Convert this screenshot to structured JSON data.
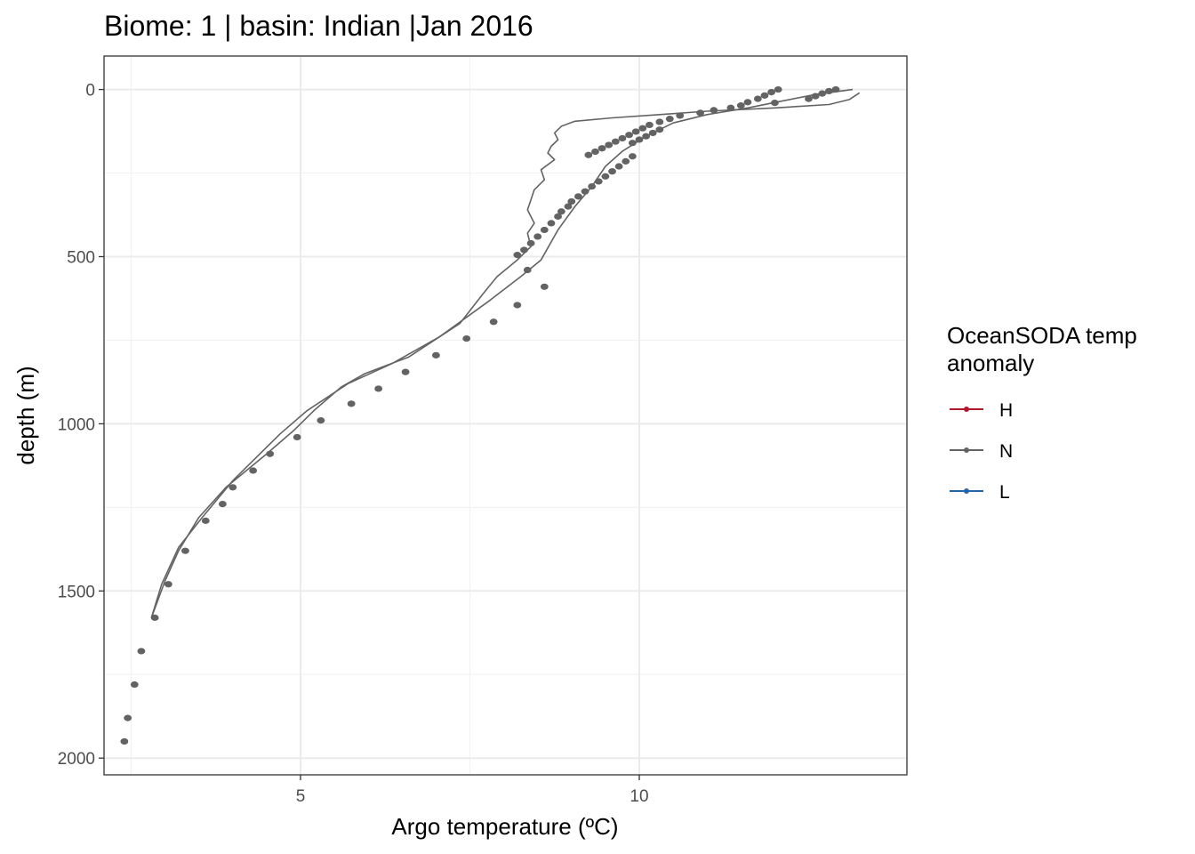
{
  "chart_data": {
    "type": "line",
    "title": "Biome: 1 | basin: Indian  |Jan 2016",
    "xlabel": "Argo temperature (ºC)",
    "ylabel": "depth (m)",
    "xlim": [
      2.1,
      13.95
    ],
    "ylim": [
      -100,
      2050
    ],
    "y_reversed": true,
    "grid": true,
    "x_ticks": [
      {
        "value": 5,
        "label": "5"
      },
      {
        "value": 10,
        "label": "10"
      }
    ],
    "y_ticks": [
      {
        "value": 0,
        "label": "0"
      },
      {
        "value": 500,
        "label": "500"
      },
      {
        "value": 1000,
        "label": "1000"
      },
      {
        "value": 1500,
        "label": "1500"
      },
      {
        "value": 2000,
        "label": "2000"
      }
    ],
    "legend": {
      "title_lines": [
        "OceanSODA temp",
        "anomaly"
      ],
      "placement": "right",
      "entries": [
        {
          "name": "H",
          "color": "#b2182b"
        },
        {
          "name": "N",
          "color": "#636363"
        },
        {
          "name": "L",
          "color": "#2166ac"
        }
      ]
    },
    "series_color": "#636363",
    "lines": [
      {
        "name": "N",
        "points": [
          [
            13.25,
            10
          ],
          [
            13.1,
            30
          ],
          [
            12.8,
            45
          ],
          [
            12.0,
            55
          ],
          [
            11.0,
            65
          ],
          [
            10.3,
            75
          ],
          [
            9.6,
            85
          ],
          [
            9.05,
            95
          ],
          [
            8.85,
            110
          ],
          [
            8.75,
            130
          ],
          [
            8.8,
            150
          ],
          [
            8.7,
            170
          ],
          [
            8.65,
            190
          ],
          [
            8.75,
            210
          ],
          [
            8.55,
            240
          ],
          [
            8.6,
            270
          ],
          [
            8.45,
            300
          ],
          [
            8.4,
            330
          ],
          [
            8.35,
            360
          ],
          [
            8.45,
            400
          ],
          [
            8.35,
            430
          ],
          [
            8.4,
            470
          ],
          [
            8.2,
            510
          ],
          [
            7.9,
            560
          ],
          [
            7.7,
            610
          ],
          [
            7.35,
            700
          ],
          [
            6.6,
            800
          ],
          [
            5.95,
            850
          ],
          [
            5.6,
            890
          ],
          [
            5.2,
            960
          ],
          [
            4.9,
            1020
          ],
          [
            4.5,
            1090
          ],
          [
            3.9,
            1190
          ],
          [
            3.5,
            1280
          ],
          [
            3.2,
            1380
          ],
          [
            3.0,
            1470
          ],
          [
            2.8,
            1580
          ]
        ]
      },
      {
        "name": "N",
        "points": [
          [
            13.15,
            0
          ],
          [
            12.6,
            15
          ],
          [
            12.1,
            35
          ],
          [
            11.6,
            55
          ],
          [
            11.0,
            75
          ],
          [
            10.5,
            100
          ],
          [
            10.1,
            140
          ],
          [
            9.75,
            185
          ],
          [
            9.5,
            230
          ],
          [
            9.3,
            290
          ],
          [
            9.05,
            350
          ],
          [
            8.8,
            420
          ],
          [
            8.55,
            510
          ],
          [
            8.25,
            560
          ],
          [
            7.8,
            630
          ],
          [
            7.05,
            740
          ],
          [
            6.35,
            820
          ],
          [
            5.7,
            880
          ],
          [
            5.1,
            960
          ],
          [
            4.7,
            1030
          ],
          [
            4.4,
            1090
          ],
          [
            4.0,
            1170
          ],
          [
            3.55,
            1280
          ],
          [
            3.2,
            1370
          ],
          [
            2.95,
            1480
          ],
          [
            2.8,
            1580
          ]
        ]
      }
    ],
    "points": [
      [
        12.9,
        0
      ],
      [
        12.8,
        5
      ],
      [
        12.7,
        12
      ],
      [
        12.6,
        20
      ],
      [
        12.5,
        28
      ],
      [
        12.05,
        0
      ],
      [
        11.95,
        8
      ],
      [
        11.85,
        18
      ],
      [
        11.75,
        28
      ],
      [
        11.6,
        38
      ],
      [
        12.0,
        40
      ],
      [
        11.5,
        48
      ],
      [
        11.35,
        55
      ],
      [
        11.1,
        62
      ],
      [
        10.9,
        70
      ],
      [
        10.6,
        78
      ],
      [
        10.45,
        88
      ],
      [
        10.3,
        97
      ],
      [
        10.15,
        106
      ],
      [
        10.05,
        116
      ],
      [
        9.95,
        126
      ],
      [
        9.85,
        136
      ],
      [
        9.75,
        146
      ],
      [
        9.65,
        156
      ],
      [
        9.55,
        166
      ],
      [
        9.45,
        176
      ],
      [
        9.35,
        186
      ],
      [
        9.25,
        196
      ],
      [
        10.3,
        120
      ],
      [
        10.2,
        130
      ],
      [
        10.1,
        140
      ],
      [
        10.0,
        150
      ],
      [
        9.9,
        160
      ],
      [
        9.9,
        200
      ],
      [
        9.8,
        215
      ],
      [
        9.7,
        230
      ],
      [
        9.6,
        245
      ],
      [
        9.5,
        260
      ],
      [
        9.4,
        275
      ],
      [
        9.3,
        290
      ],
      [
        9.2,
        305
      ],
      [
        9.1,
        320
      ],
      [
        9.0,
        335
      ],
      [
        8.95,
        350
      ],
      [
        8.85,
        365
      ],
      [
        8.8,
        380
      ],
      [
        8.7,
        400
      ],
      [
        8.6,
        420
      ],
      [
        8.5,
        440
      ],
      [
        8.4,
        460
      ],
      [
        8.3,
        480
      ],
      [
        8.2,
        495
      ],
      [
        8.35,
        540
      ],
      [
        8.6,
        590
      ],
      [
        8.2,
        645
      ],
      [
        7.85,
        695
      ],
      [
        7.45,
        745
      ],
      [
        7.0,
        795
      ],
      [
        6.55,
        845
      ],
      [
        6.15,
        895
      ],
      [
        5.75,
        940
      ],
      [
        5.3,
        990
      ],
      [
        4.95,
        1040
      ],
      [
        4.55,
        1090
      ],
      [
        4.3,
        1140
      ],
      [
        4.0,
        1190
      ],
      [
        3.85,
        1240
      ],
      [
        3.6,
        1290
      ],
      [
        3.3,
        1380
      ],
      [
        3.05,
        1480
      ],
      [
        2.85,
        1580
      ],
      [
        2.65,
        1680
      ],
      [
        2.55,
        1780
      ],
      [
        2.45,
        1880
      ],
      [
        2.4,
        1950
      ]
    ]
  }
}
